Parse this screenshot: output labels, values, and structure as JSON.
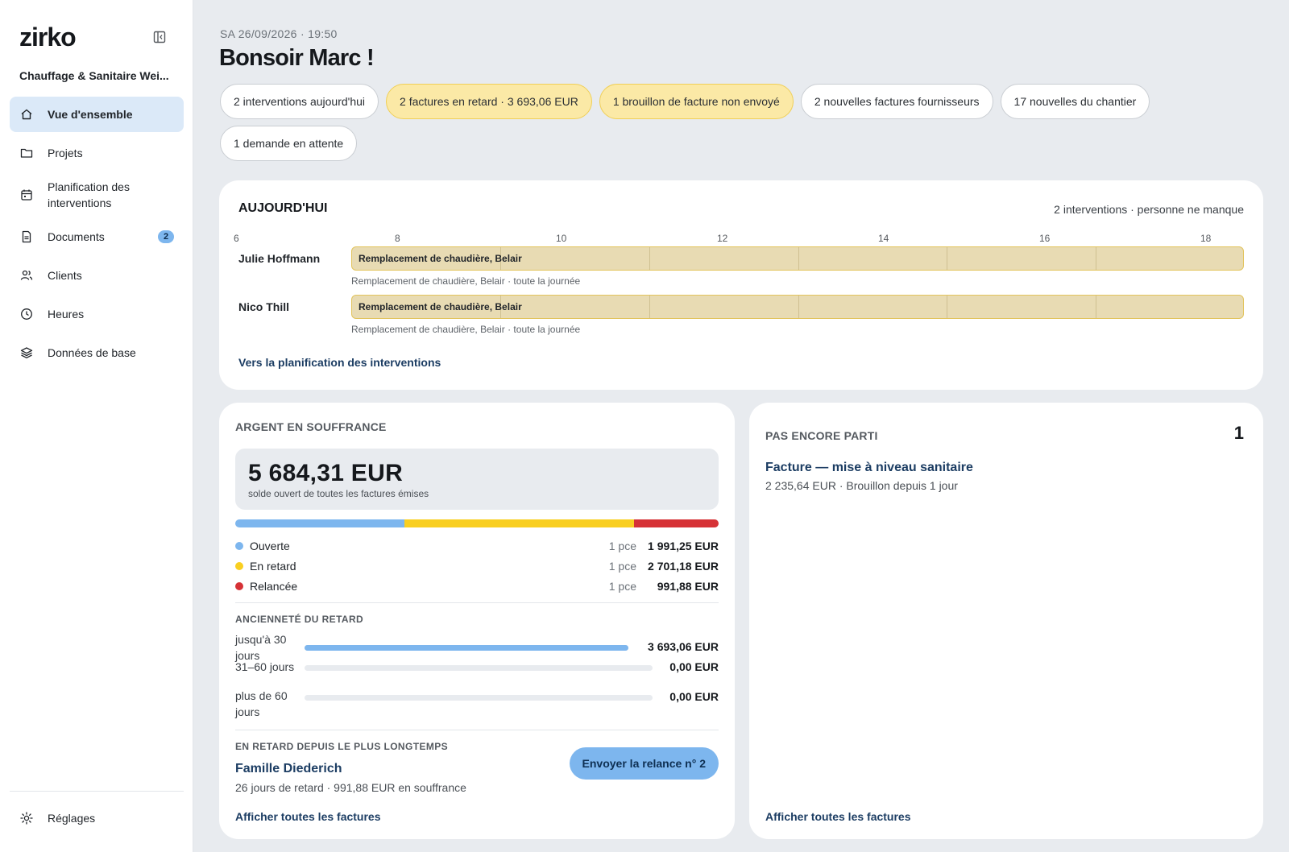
{
  "app": {
    "logo": "zirko",
    "company": "Chauffage & Sanitaire Wei..."
  },
  "sidebar": {
    "items": [
      {
        "label": "Vue d'ensemble",
        "icon": "home-icon",
        "active": true
      },
      {
        "label": "Projets",
        "icon": "folder-icon"
      },
      {
        "label": "Planification des interventions",
        "icon": "calendar-icon"
      },
      {
        "label": "Documents",
        "icon": "document-icon",
        "badge": "2"
      },
      {
        "label": "Clients",
        "icon": "users-icon"
      },
      {
        "label": "Heures",
        "icon": "clock-icon"
      },
      {
        "label": "Données de base",
        "icon": "layers-icon"
      }
    ],
    "settings": {
      "label": "Réglages",
      "icon": "gear-icon"
    }
  },
  "header": {
    "datetime": "SA 26/09/2026 · 19:50",
    "greeting": "Bonsoir Marc !",
    "chips": [
      {
        "label": "2 interventions aujourd'hui",
        "warn": false
      },
      {
        "label": "2 factures en retard · 3 693,06 EUR",
        "warn": true
      },
      {
        "label": "1 brouillon de facture non envoyé",
        "warn": true
      },
      {
        "label": "2 nouvelles factures fournisseurs",
        "warn": false
      },
      {
        "label": "17 nouvelles du chantier",
        "warn": false
      },
      {
        "label": "1 demande en attente",
        "warn": false
      }
    ]
  },
  "today": {
    "title": "AUJOURD'HUI",
    "summary": "2 interventions · personne ne manque",
    "hours": [
      "6",
      "8",
      "10",
      "12",
      "14",
      "16",
      "18"
    ],
    "rows": [
      {
        "person": "Julie Hoffmann",
        "bar_label": "Remplacement de chaudière, Belair",
        "sub": "Remplacement de chaudière, Belair · toute la journée"
      },
      {
        "person": "Nico Thill",
        "bar_label": "Remplacement de chaudière, Belair",
        "sub": "Remplacement de chaudière, Belair · toute la journée"
      }
    ],
    "link": "Vers la planification des interventions"
  },
  "money": {
    "title": "ARGENT EN SOUFFRANCE",
    "total": "5 684,31 EUR",
    "total_sub": "solde ouvert de toutes les factures émises",
    "segments": [
      {
        "name": "Ouverte",
        "count": "1 pce",
        "amount": "1 991,25 EUR",
        "value": 1991.25,
        "color": "#7db6ee"
      },
      {
        "name": "En retard",
        "count": "1 pce",
        "amount": "2 701,18 EUR",
        "value": 2701.18,
        "color": "#f9cf21"
      },
      {
        "name": "Relancée",
        "count": "1 pce",
        "amount": "991,88 EUR",
        "value": 991.88,
        "color": "#d63236"
      }
    ],
    "age_title": "ANCIENNETÉ DU RETARD",
    "age": [
      {
        "label": "jusqu'à 30 jours",
        "amount": "3 693,06 EUR",
        "fraction": 1.0
      },
      {
        "label": "31–60 jours",
        "amount": "0,00 EUR",
        "fraction": 0
      },
      {
        "label": "plus de 60 jours",
        "amount": "0,00 EUR",
        "fraction": 0
      }
    ],
    "late_title": "EN RETARD DEPUIS LE PLUS LONGTEMPS",
    "late_name": "Famille Diederich",
    "late_sub": "26 jours de retard · 991,88 EUR en souffrance",
    "reminder_button": "Envoyer la relance n° 2",
    "link": "Afficher toutes les factures"
  },
  "notsent": {
    "title": "PAS ENCORE PARTI",
    "count": "1",
    "draft_title": "Facture — mise à niveau sanitaire",
    "draft_sub": "2 235,64 EUR · Brouillon depuis 1 jour",
    "link": "Afficher toutes les factures"
  }
}
